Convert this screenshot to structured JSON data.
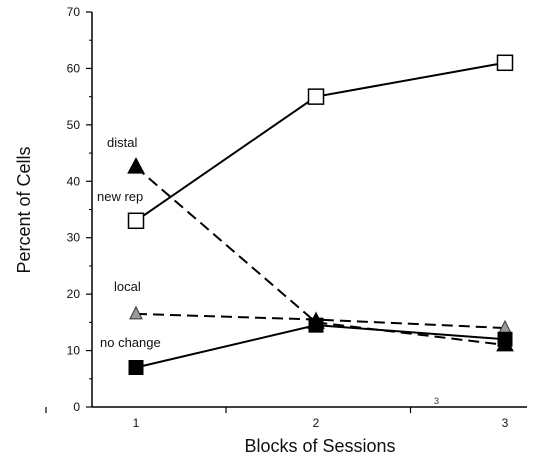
{
  "chart_data": {
    "type": "line",
    "x": [
      1,
      2,
      3
    ],
    "xlabel": "Blocks of Sessions",
    "ylabel": "Percent of Cells",
    "xticks": [
      "1",
      "2",
      "3"
    ],
    "yticks": [
      "0",
      "10",
      "20",
      "30",
      "40",
      "50",
      "60",
      "70"
    ],
    "ylim": [
      0,
      70
    ],
    "grid": false,
    "legend": "none",
    "series": [
      {
        "name": "new rep",
        "values": [
          33,
          55,
          61
        ],
        "line": "solid",
        "marker": "open-square"
      },
      {
        "name": "distal",
        "values": [
          42.5,
          15,
          11
        ],
        "line": "dashed",
        "marker": "filled-triangle"
      },
      {
        "name": "local",
        "values": [
          16.5,
          15.5,
          14
        ],
        "line": "dashed",
        "marker": "gray-triangle"
      },
      {
        "name": "no change",
        "values": [
          7,
          14.5,
          12
        ],
        "line": "solid",
        "marker": "filled-square"
      }
    ],
    "stray_label": "3"
  }
}
